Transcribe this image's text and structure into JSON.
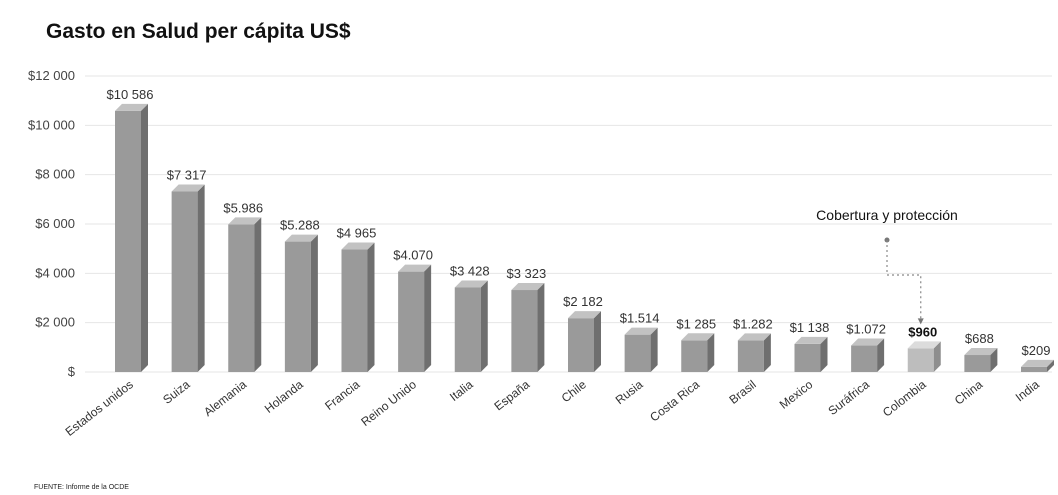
{
  "chart_data": {
    "type": "bar",
    "title": "Gasto en Salud per cápita US$",
    "xlabel": "",
    "ylabel": "",
    "ylim": [
      0,
      12000
    ],
    "yticks": [
      {
        "value": 0,
        "label": "$"
      },
      {
        "value": 2000,
        "label": "$2 000"
      },
      {
        "value": 4000,
        "label": "$4 000"
      },
      {
        "value": 6000,
        "label": "$6 000"
      },
      {
        "value": 8000,
        "label": "$8 000"
      },
      {
        "value": 10000,
        "label": "$10 000"
      },
      {
        "value": 12000,
        "label": "$12 000"
      }
    ],
    "grid": true,
    "legend": "none",
    "categories": [
      "Estados unidos",
      "Suiza",
      "Alemania",
      "Holanda",
      "Francia",
      "Reino Unido",
      "Italia",
      "España",
      "Chile",
      "Rusia",
      "Costa Rica",
      "Brasil",
      "Mexico",
      "Suráfrica",
      "Colombia",
      "China",
      "India"
    ],
    "values": [
      10586,
      7317,
      5986,
      5288,
      4965,
      4070,
      3428,
      3323,
      2182,
      1514,
      1285,
      1282,
      1138,
      1072,
      960,
      688,
      209
    ],
    "data_labels": [
      "$10 586",
      "$7 317",
      "$5.986",
      "$5.288",
      "$4 965",
      "$4.070",
      "$3 428",
      "$3 323",
      "$2 182",
      "$1.514",
      "$1 285",
      "$1.282",
      "$1 138",
      "$1.072",
      "$960",
      "$688",
      "$209"
    ],
    "highlight_index": 14,
    "annotation": {
      "text": "Cobertura y protección",
      "target_index": 14
    },
    "colors": {
      "bar_front": "#9a9a9a",
      "bar_side": "#6f6f6f",
      "bar_top": "#c2c2c2",
      "highlight_front": "#bdbdbd",
      "highlight_side": "#8e8e8e",
      "highlight_top": "#dcdcdc"
    }
  },
  "source": "FUENTE: Informe de la OCDE"
}
